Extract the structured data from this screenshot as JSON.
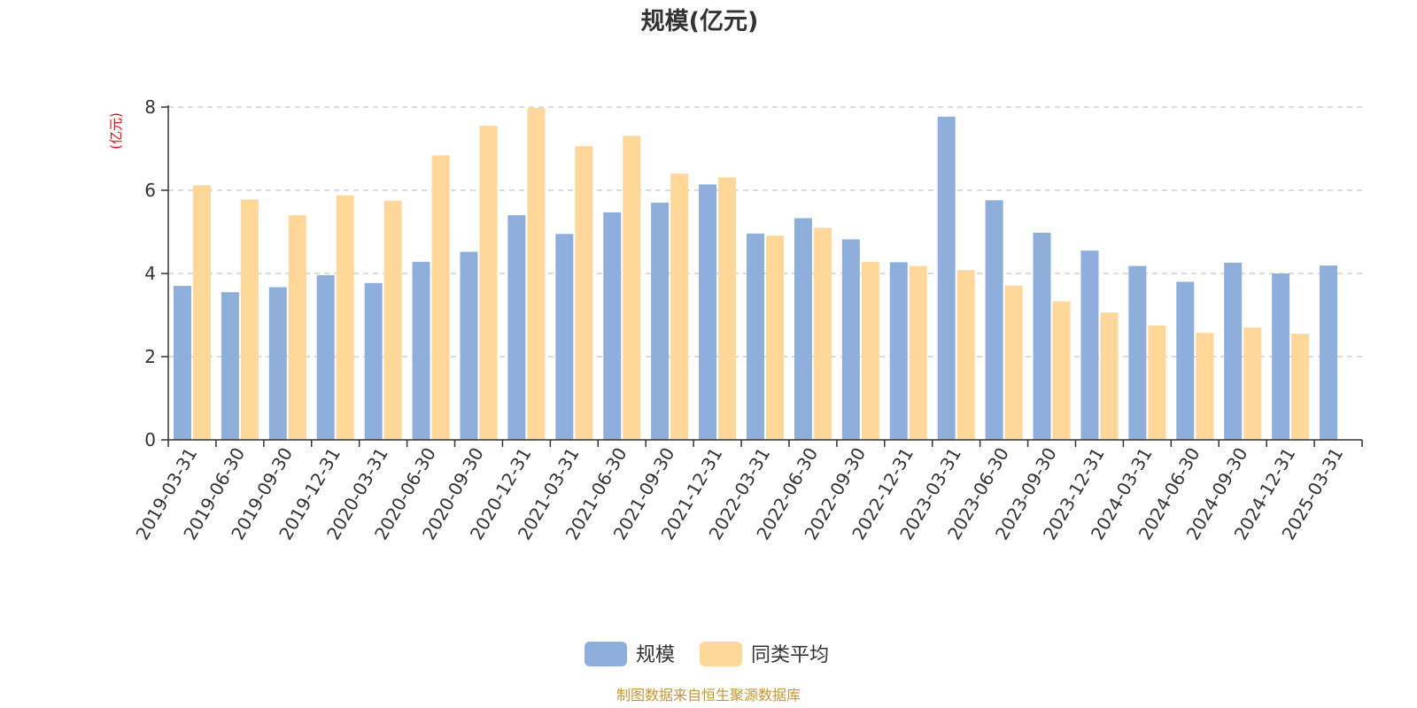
{
  "chart_data": {
    "type": "bar",
    "title": "规模(亿元)",
    "unit_label": "(亿元)",
    "ylim": [
      0,
      8
    ],
    "yticks": [
      0,
      2,
      4,
      6,
      8
    ],
    "grid": true,
    "legend_position": "bottom-center",
    "categories": [
      "2019-03-31",
      "2019-06-30",
      "2019-09-30",
      "2019-12-31",
      "2020-03-31",
      "2020-06-30",
      "2020-09-30",
      "2020-12-31",
      "2021-03-31",
      "2021-06-30",
      "2021-09-30",
      "2021-12-31",
      "2022-03-31",
      "2022-06-30",
      "2022-09-30",
      "2022-12-31",
      "2023-03-31",
      "2023-06-30",
      "2023-09-30",
      "2023-12-31",
      "2024-03-31",
      "2024-06-30",
      "2024-09-30",
      "2024-12-31",
      "2025-03-31"
    ],
    "series": [
      {
        "name": "规模",
        "color": "#8eaedb",
        "values": [
          3.7,
          3.55,
          3.67,
          3.96,
          3.77,
          4.28,
          4.52,
          5.4,
          4.95,
          5.47,
          5.7,
          6.14,
          4.96,
          5.33,
          4.82,
          4.27,
          7.77,
          5.76,
          4.98,
          4.55,
          4.18,
          3.8,
          4.26,
          4.0,
          4.19
        ]
      },
      {
        "name": "同类平均",
        "color": "#ffd899",
        "values": [
          6.12,
          5.78,
          5.4,
          5.88,
          5.75,
          6.84,
          7.55,
          7.98,
          7.06,
          7.31,
          6.4,
          6.31,
          4.91,
          5.1,
          4.28,
          4.18,
          4.08,
          3.71,
          3.33,
          3.06,
          2.75,
          2.57,
          2.7,
          2.55,
          null
        ]
      }
    ]
  },
  "source_text": "制图数据来自恒生聚源数据库"
}
